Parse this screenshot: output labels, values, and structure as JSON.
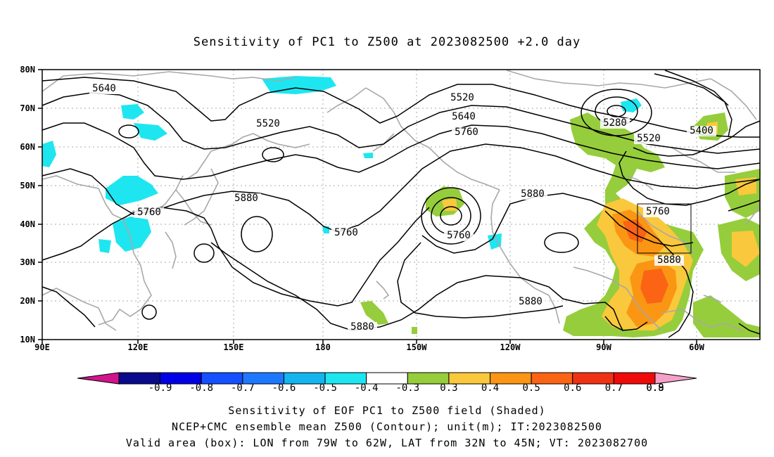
{
  "title": "Sensitivity of PC1 to Z500 at 2023082500 +2.0 day",
  "map": {
    "lat_labels": [
      "80N",
      "70N",
      "60N",
      "50N",
      "40N",
      "30N",
      "20N",
      "10N"
    ],
    "lon_labels": [
      "90E",
      "120E",
      "150E",
      "180",
      "150W",
      "120W",
      "90W",
      "60W"
    ],
    "contour_labels": [
      {
        "id": "c5640-left",
        "text": "5640"
      },
      {
        "id": "c5520-asia",
        "text": "5520"
      },
      {
        "id": "c5760-asia",
        "text": "5760"
      },
      {
        "id": "c5880-pac",
        "text": "5880"
      },
      {
        "id": "c5760-pac",
        "text": "5760"
      },
      {
        "id": "c5880-south",
        "text": "5880"
      },
      {
        "id": "c5520-top",
        "text": "5520"
      },
      {
        "id": "c5640-top",
        "text": "5640"
      },
      {
        "id": "c5760-top",
        "text": "5760"
      },
      {
        "id": "c5760-low",
        "text": "5760"
      },
      {
        "id": "c5880-east",
        "text": "5880"
      },
      {
        "id": "c5880-mex",
        "text": "5880"
      },
      {
        "id": "c5280",
        "text": "5280"
      },
      {
        "id": "c5520-can",
        "text": "5520"
      },
      {
        "id": "c5400",
        "text": "5400"
      },
      {
        "id": "c5760-box",
        "text": "5760"
      },
      {
        "id": "c5880-box",
        "text": "5880"
      }
    ],
    "valid_box": {
      "lon_west": "79W",
      "lon_east": "62W",
      "lat_south": "32N",
      "lat_north": "45N"
    }
  },
  "colorbar": {
    "labels": [
      "-0.9",
      "-0.8",
      "-0.7",
      "-0.6",
      "-0.5",
      "-0.4",
      "-0.3",
      "0.3",
      "0.4",
      "0.5",
      "0.6",
      "0.7",
      "0.8",
      "0.9"
    ],
    "colors": [
      "#0a0a8c",
      "#0000e6",
      "#1450ff",
      "#1e78ff",
      "#14b4f0",
      "#1ee6f0",
      "#ffffff",
      "#96cd3c",
      "#fac83c",
      "#fa9614",
      "#fa6414",
      "#f03214",
      "#f00a0a"
    ],
    "low_end_color": "#d2148c",
    "high_end_color": "#f5a0c8"
  },
  "captions": [
    "Sensitivity of EOF PC1 to Z500 field (Shaded)",
    "NCEP+CMC ensemble mean Z500 (Contour); unit(m); IT:2023082500",
    "Valid area (box): LON from 79W to 62W, LAT from 32N to 45N; VT: 2023082700"
  ]
}
